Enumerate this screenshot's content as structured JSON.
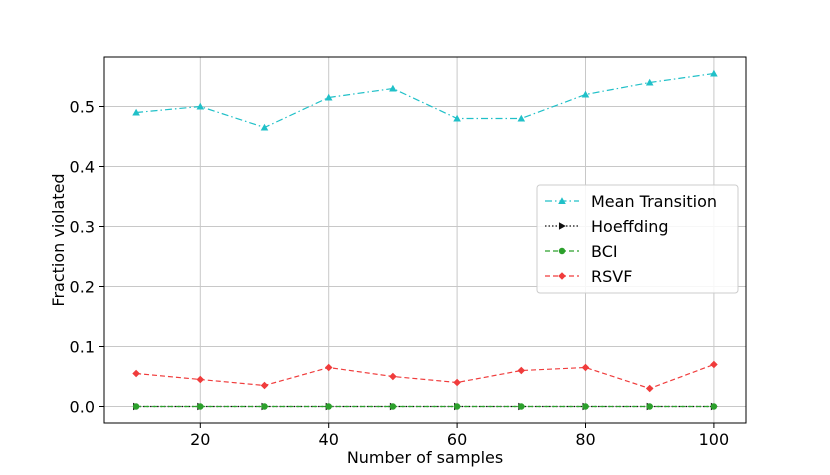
{
  "chart_data": {
    "type": "line",
    "title": "",
    "xlabel": "Number of samples",
    "ylabel": "Fraction violated",
    "x": [
      10,
      20,
      30,
      40,
      50,
      60,
      70,
      80,
      90,
      100
    ],
    "xlim": [
      5,
      105
    ],
    "ylim": [
      -0.0275,
      0.5825
    ],
    "xticks": [
      20,
      40,
      60,
      80,
      100
    ],
    "yticks": [
      0.0,
      0.1,
      0.2,
      0.3,
      0.4,
      0.5
    ],
    "ytick_labels": [
      "0.0",
      "0.1",
      "0.2",
      "0.3",
      "0.4",
      "0.5"
    ],
    "grid": true,
    "legend_position": "center-right",
    "series": [
      {
        "name": "Mean Transition",
        "color": "#20c0c8",
        "marker": "triangle",
        "linestyle": "dashdot",
        "values": [
          0.49,
          0.5,
          0.465,
          0.515,
          0.53,
          0.48,
          0.48,
          0.52,
          0.54,
          0.555
        ]
      },
      {
        "name": "Hoeffding",
        "color": "#111111",
        "marker": "triangle-right",
        "linestyle": "dotted",
        "values": [
          0,
          0,
          0,
          0,
          0,
          0,
          0,
          0,
          0,
          0
        ]
      },
      {
        "name": "BCI",
        "color": "#2ca02c",
        "marker": "circle",
        "linestyle": "dashed",
        "values": [
          0,
          0,
          0,
          0,
          0,
          0,
          0,
          0,
          0,
          0
        ]
      },
      {
        "name": "RSVF",
        "color": "#f03c3c",
        "marker": "diamond",
        "linestyle": "dashed",
        "values": [
          0.055,
          0.045,
          0.035,
          0.065,
          0.05,
          0.04,
          0.06,
          0.065,
          0.03,
          0.07
        ]
      }
    ]
  }
}
